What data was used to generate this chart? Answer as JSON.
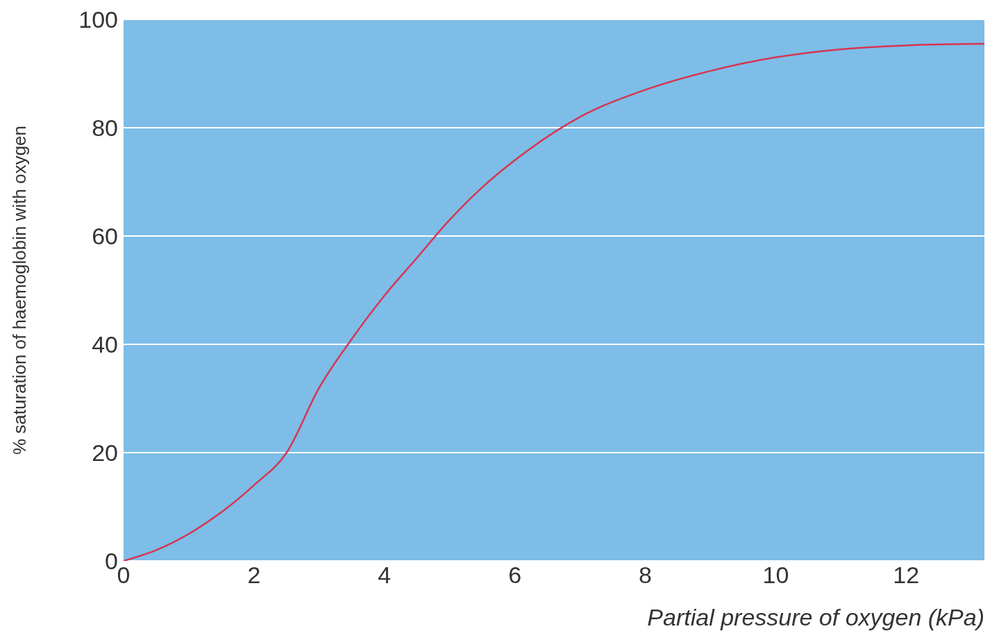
{
  "chart_data": {
    "type": "line",
    "xlabel": "Partial pressure of oxygen (kPa)",
    "ylabel": "% saturation of haemoglobin with oxygen",
    "series": [
      {
        "color": "#d8344f",
        "x": [
          0,
          0.5,
          1,
          1.5,
          2,
          2.5,
          3,
          3.5,
          4,
          4.5,
          5,
          5.5,
          6,
          7,
          8,
          9,
          10,
          11,
          12,
          13.2
        ],
        "values": [
          0,
          2,
          5,
          9,
          14,
          20,
          32,
          41,
          49,
          56,
          63,
          69,
          74,
          82,
          87,
          90.5,
          93,
          94.5,
          95.2,
          95.5
        ]
      }
    ],
    "xlim": [
      0,
      13.2
    ],
    "xticks": [
      0,
      2,
      4,
      6,
      8,
      10,
      12
    ],
    "ylim": [
      0,
      100
    ],
    "yticks": [
      0,
      20,
      40,
      60,
      80,
      100
    ],
    "grid": "y",
    "marker": "none",
    "line_style": "solid"
  }
}
